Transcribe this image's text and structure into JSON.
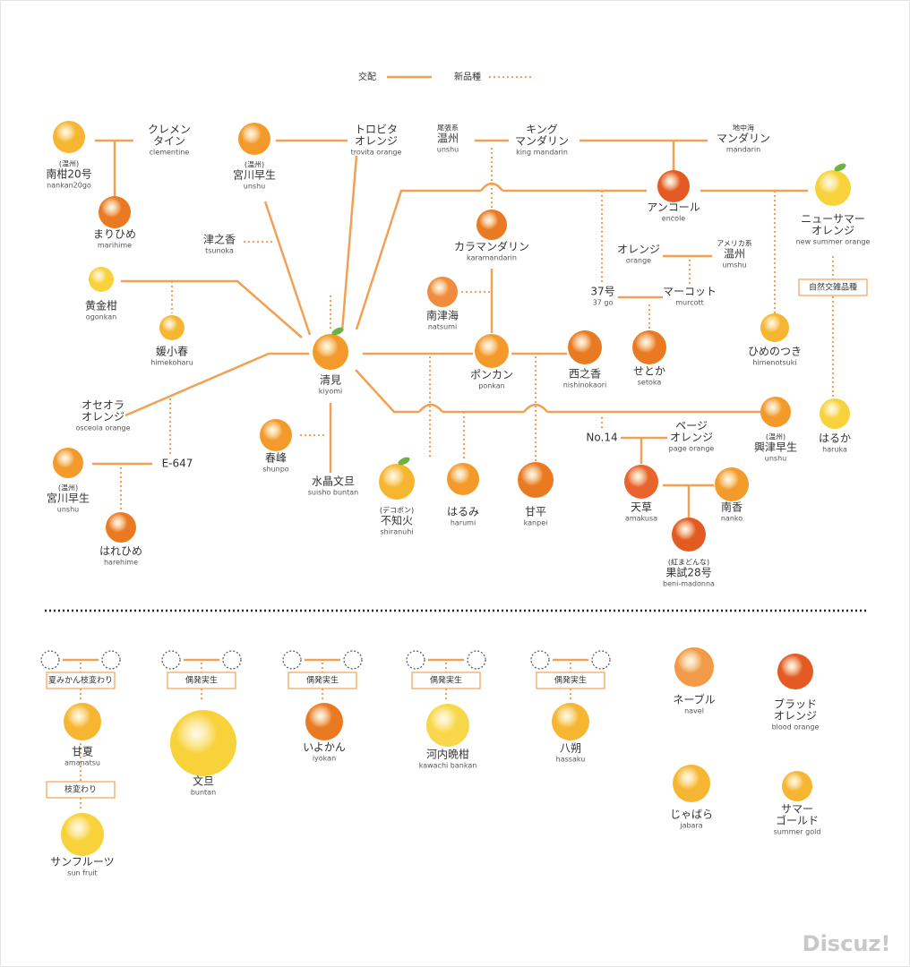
{
  "legend": {
    "cross": "交配",
    "new_variety": "新品種"
  },
  "nodes": [
    {
      "prefix": "(温州)",
      "name": [
        "南柑20号"
      ],
      "roman": "nankan20go"
    },
    {
      "name": [
        "クレメン",
        "タイン"
      ],
      "roman": "clementine"
    },
    {
      "name": [
        "まりひめ"
      ],
      "roman": "marihime"
    },
    {
      "prefix": "(温州)",
      "name": [
        "宮川早生"
      ],
      "roman": "unshu"
    },
    {
      "name": [
        "トロビタ",
        "オレンジ"
      ],
      "roman": "trovita orange"
    },
    {
      "prefix": "尾張系",
      "name": [
        "温州"
      ],
      "roman": "unshu"
    },
    {
      "name": [
        "キング",
        "マンダリン"
      ],
      "roman": "king mandarin"
    },
    {
      "prefix": "地中海",
      "name": [
        "マンダリン"
      ],
      "roman": "mandarin"
    },
    {
      "name": [
        "アンコール"
      ],
      "roman": "encole"
    },
    {
      "name": [
        "ニューサマー",
        "オレンジ"
      ],
      "roman": "new summer orange"
    },
    {
      "name": [
        "津之香"
      ],
      "roman": "tsunoka"
    },
    {
      "name": [
        "カラマンダリン"
      ],
      "roman": "karamandarin"
    },
    {
      "name": [
        "オレンジ"
      ],
      "roman": "orange"
    },
    {
      "prefix": "アメリカ系",
      "name": [
        "温州"
      ],
      "roman": "umshu"
    },
    {
      "name": [
        "黄金柑"
      ],
      "roman": "ogonkan"
    },
    {
      "name": [
        "南津海"
      ],
      "roman": "natsumi"
    },
    {
      "name": [
        "37号"
      ],
      "roman": "37 go"
    },
    {
      "name": [
        "マーコット"
      ],
      "roman": "murcott"
    },
    {
      "name": [
        "媛小春"
      ],
      "roman": "himekoharu"
    },
    {
      "name": [
        "清見"
      ],
      "roman": "kiyomi"
    },
    {
      "name": [
        "ポンカン"
      ],
      "roman": "ponkan"
    },
    {
      "name": [
        "西之香"
      ],
      "roman": "nishinokaori"
    },
    {
      "name": [
        "せとか"
      ],
      "roman": "setoka"
    },
    {
      "name": [
        "ひめのつき"
      ],
      "roman": "himenotsuki"
    },
    {
      "name": [
        "オセオラ",
        "オレンジ"
      ],
      "roman": "osceola orange"
    },
    {
      "prefix": "(温州)",
      "name": [
        "興津早生"
      ],
      "roman": "unshu"
    },
    {
      "name": [
        "はるか"
      ],
      "roman": "haruka"
    },
    {
      "name": [
        "No.14"
      ]
    },
    {
      "name": [
        "ページ",
        "オレンジ"
      ],
      "roman": "page orange"
    },
    {
      "name": [
        "春峰"
      ],
      "roman": "shunpo"
    },
    {
      "name": [
        "E-647"
      ]
    },
    {
      "prefix": "(温州)",
      "name": [
        "宮川早生"
      ],
      "roman": "unshu"
    },
    {
      "name": [
        "水晶文旦"
      ],
      "roman": "suisho buntan"
    },
    {
      "prefix": "(デコポン)",
      "name": [
        "不知火"
      ],
      "roman": "shiranuhi"
    },
    {
      "name": [
        "はるみ"
      ],
      "roman": "harumi"
    },
    {
      "name": [
        "甘平"
      ],
      "roman": "kanpei"
    },
    {
      "name": [
        "天草"
      ],
      "roman": "amakusa"
    },
    {
      "name": [
        "南香"
      ],
      "roman": "nanko"
    },
    {
      "prefix": "(紅まどんな)",
      "name": [
        "果試28号"
      ],
      "roman": "beni-madonna"
    },
    {
      "name": [
        "はれひめ"
      ],
      "roman": "harehime"
    }
  ],
  "tags": [
    "自然交雑品種"
  ],
  "bottom_tags": [
    "夏みかん枝変わり",
    "枝変わり",
    "偶発実生",
    "偶発実生",
    "偶発実生",
    "偶発実生"
  ],
  "bottom_nodes": [
    {
      "name": [
        "甘夏"
      ],
      "roman": "amanatsu"
    },
    {
      "name": [
        "サンフルーツ"
      ],
      "roman": "sun fruit"
    },
    {
      "name": [
        "文旦"
      ],
      "roman": "buntan"
    },
    {
      "name": [
        "いよかん"
      ],
      "roman": "iyokan"
    },
    {
      "name": [
        "河内晩柑"
      ],
      "roman": "kawachi bankan"
    },
    {
      "name": [
        "八朔"
      ],
      "roman": "hassaku"
    },
    {
      "name": [
        "ネーブル"
      ],
      "roman": "navel"
    },
    {
      "name": [
        "ブラッド",
        "オレンジ"
      ],
      "roman": "blood orange"
    },
    {
      "name": [
        "じゃばら"
      ],
      "roman": "jabara"
    },
    {
      "name": [
        "サマー",
        "ゴールド"
      ],
      "roman": "summer gold"
    }
  ],
  "watermark": "Discuz!"
}
